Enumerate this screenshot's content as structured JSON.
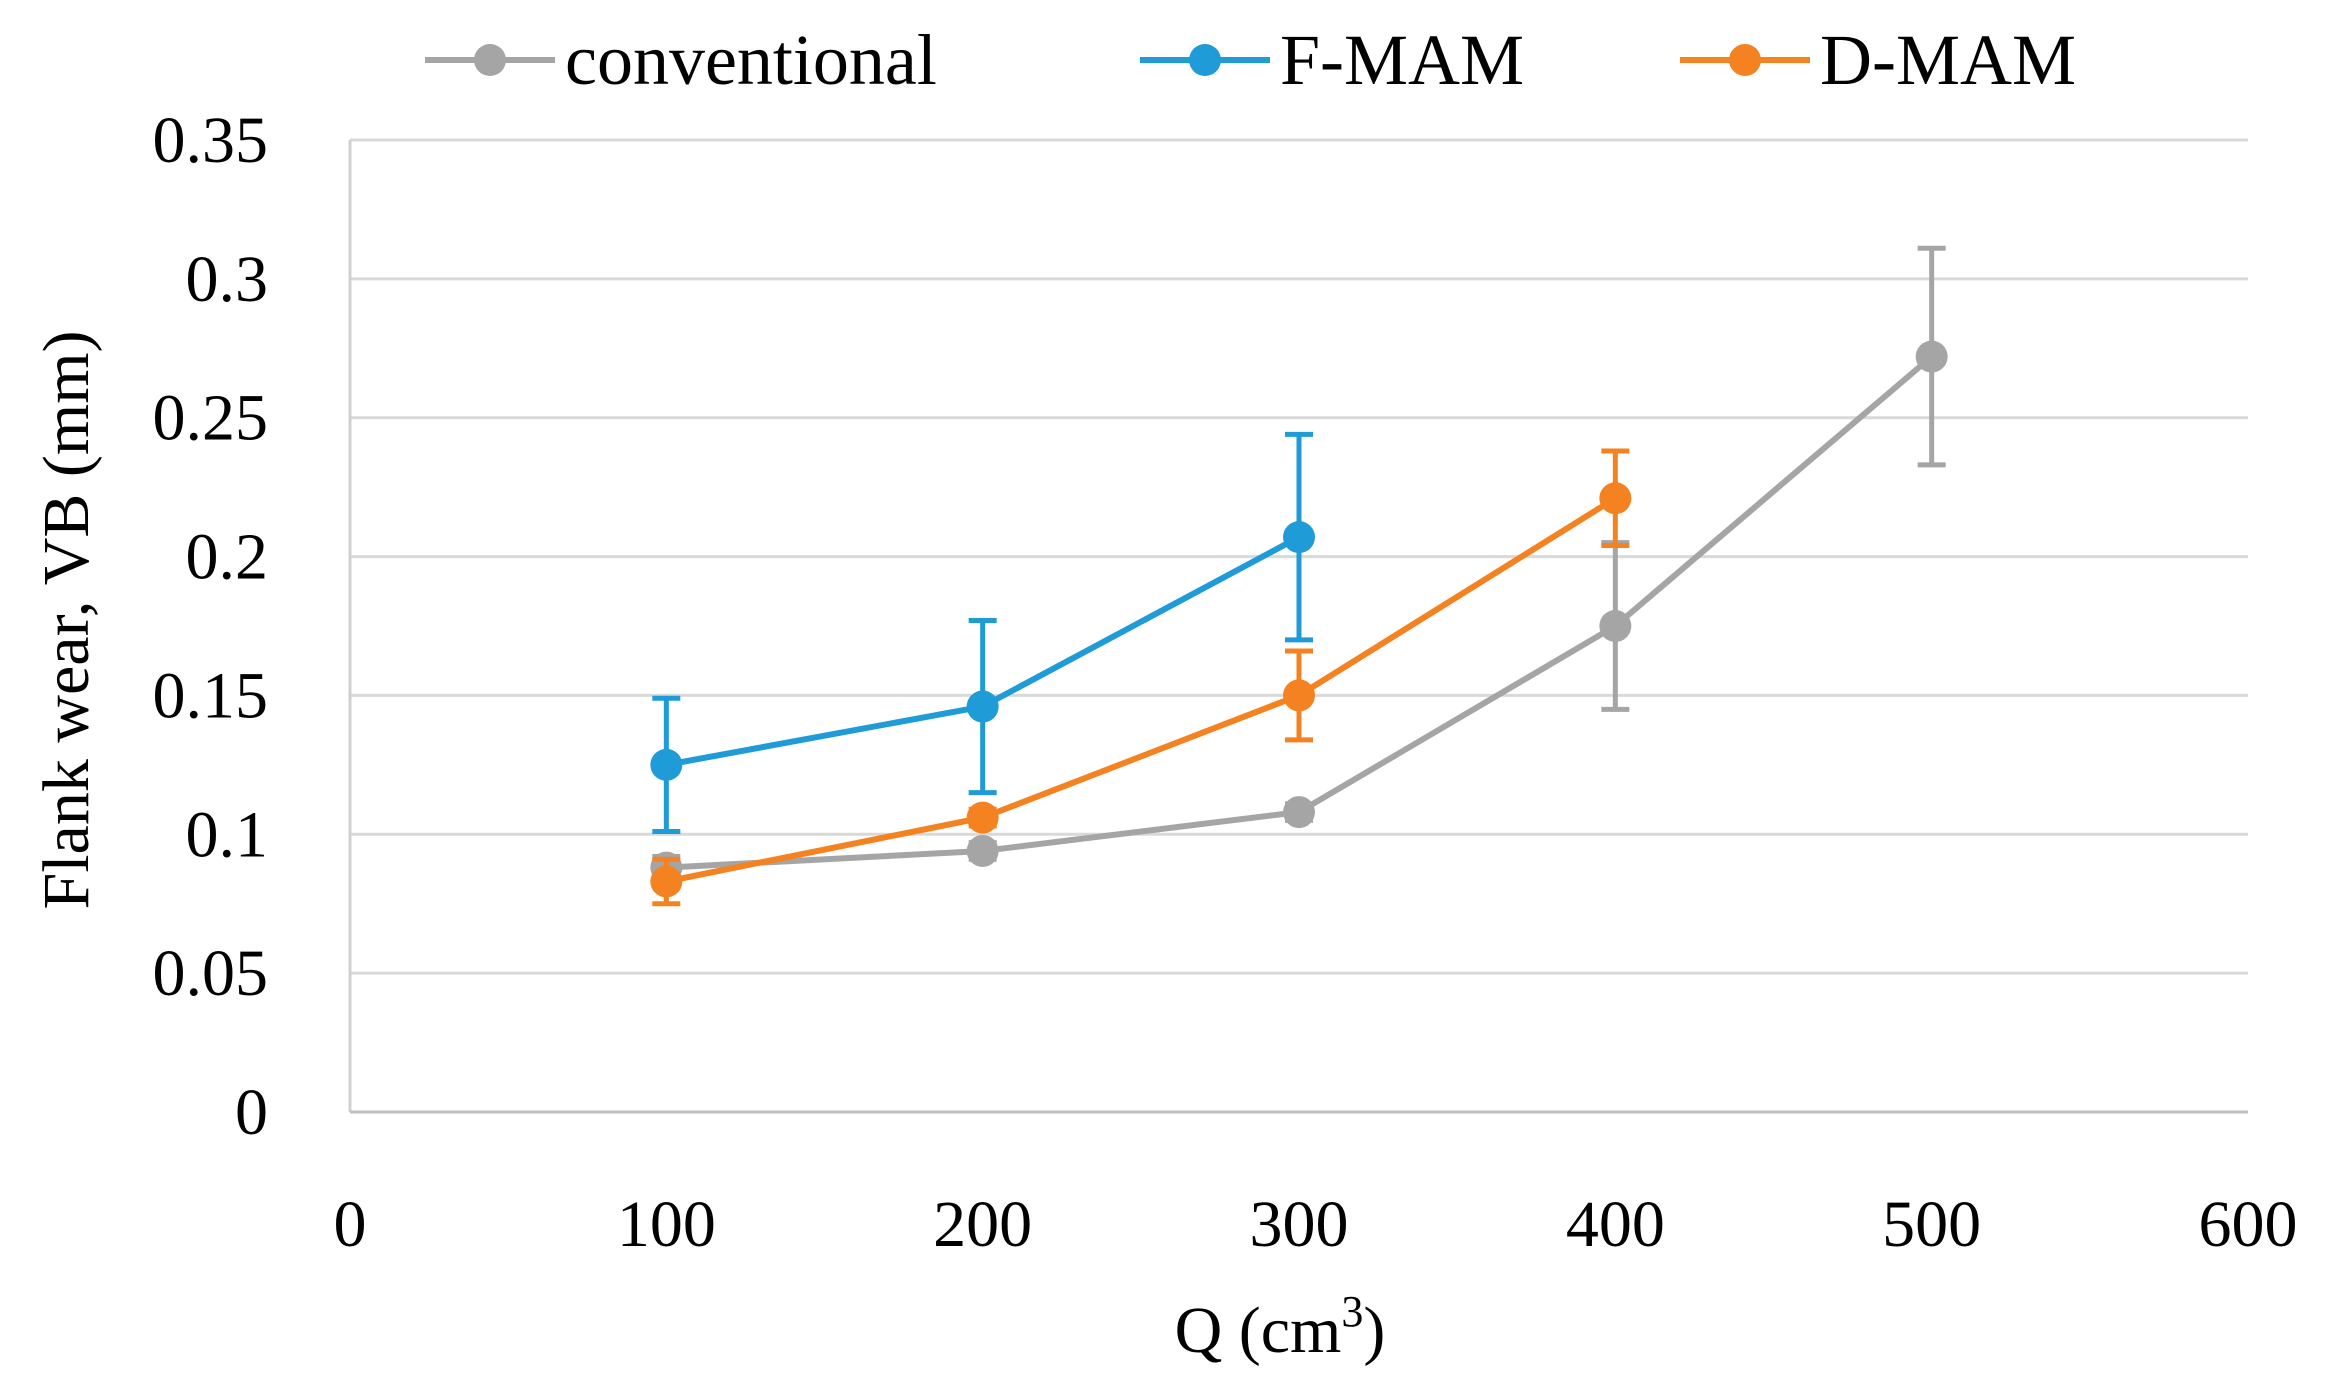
{
  "chart_data": {
    "type": "line",
    "title": "",
    "xlabel": "Q (cm",
    "xlabel_sup": "3",
    "xlabel_suffix": ")",
    "ylabel": "Flank wear, VB (mm)",
    "xlim": [
      0,
      600
    ],
    "ylim": [
      0,
      0.35
    ],
    "xticks": [
      0,
      100,
      200,
      300,
      400,
      500,
      600
    ],
    "xtick_labels": [
      "0",
      "100",
      "200",
      "300",
      "400",
      "500",
      "600"
    ],
    "yticks": [
      0,
      0.05,
      0.1,
      0.15,
      0.2,
      0.25,
      0.3,
      0.35
    ],
    "ytick_labels": [
      "0",
      "0.05",
      "0.1",
      "0.15",
      "0.2",
      "0.25",
      "0.3",
      "0.35"
    ],
    "grid": "horizontal",
    "legend_position": "top",
    "series": [
      {
        "name": "conventional",
        "color": "#a5a5a5",
        "x": [
          100,
          200,
          300,
          400,
          500
        ],
        "y": [
          0.088,
          0.094,
          0.108,
          0.175,
          0.272
        ],
        "err": [
          0.004,
          0.003,
          0.003,
          0.03,
          0.039
        ]
      },
      {
        "name": "F-MAM",
        "color": "#1f9bd7",
        "x": [
          100,
          200,
          300
        ],
        "y": [
          0.125,
          0.146,
          0.207
        ],
        "err": [
          0.024,
          0.031,
          0.037
        ]
      },
      {
        "name": "D-MAM",
        "color": "#f58220",
        "x": [
          100,
          200,
          300,
          400
        ],
        "y": [
          0.083,
          0.106,
          0.15,
          0.221
        ],
        "err": [
          0.008,
          0.003,
          0.016,
          0.017
        ]
      }
    ]
  }
}
